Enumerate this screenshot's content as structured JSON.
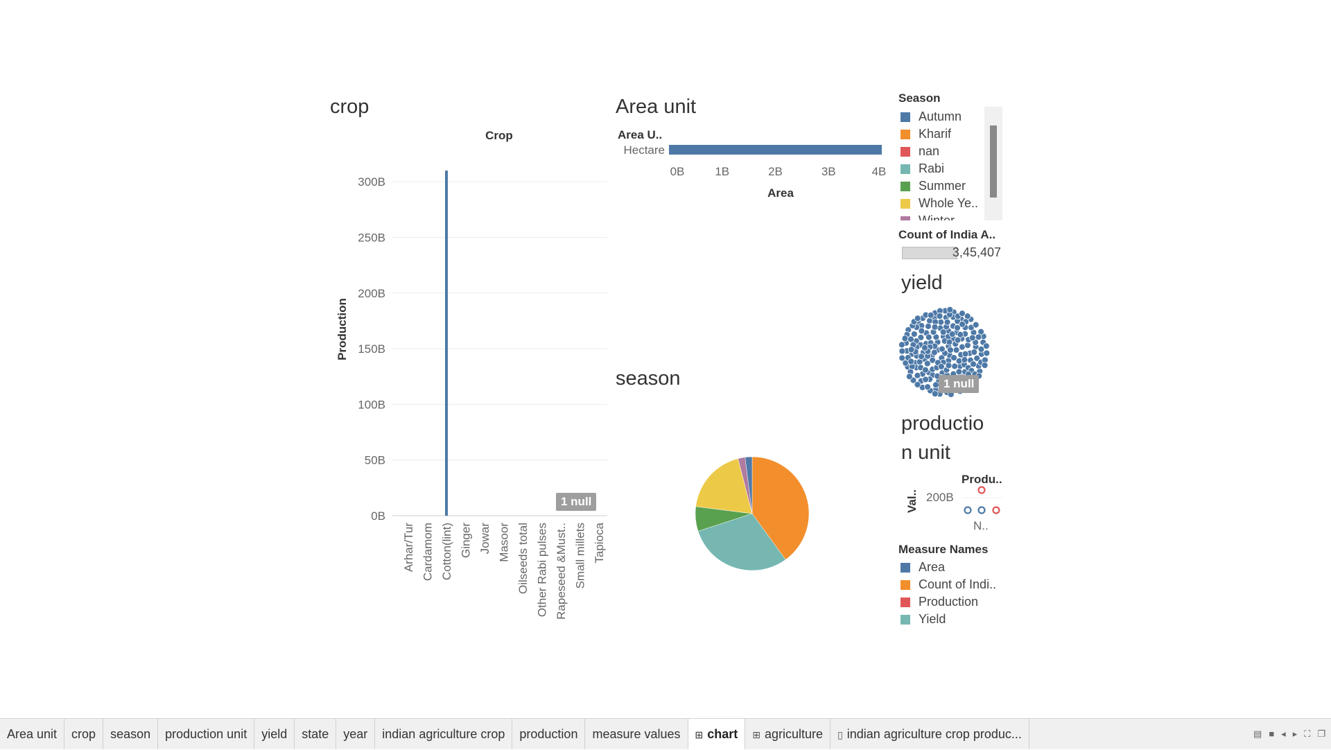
{
  "crop_sheet": {
    "title": "crop",
    "chart_title": "Crop",
    "y_axis_label": "Production",
    "null_badge": "1 null"
  },
  "area_sheet": {
    "title": "Area unit",
    "row_header": "Area U..",
    "x_axis_label": "Area"
  },
  "season_sheet": {
    "title": "season"
  },
  "yield_sheet": {
    "title": "yield",
    "null_badge": "1 null"
  },
  "production_unit_sheet": {
    "title_line1": "productio",
    "title_line2": "n unit",
    "column_header": "Produ..",
    "row_label": "Val..",
    "y_tick": "200B",
    "x_tick": "N.."
  },
  "legend_season": {
    "title": "Season",
    "items": [
      {
        "label": "Autumn",
        "color": "#4e79a7"
      },
      {
        "label": "Kharif",
        "color": "#f28e2b"
      },
      {
        "label": "nan",
        "color": "#e15759"
      },
      {
        "label": "Rabi",
        "color": "#76b7b2"
      },
      {
        "label": "Summer",
        "color": "#59a14f"
      },
      {
        "label": "Whole Ye..",
        "color": "#edc948"
      },
      {
        "label": "Winter",
        "color": "#b07aa1"
      }
    ]
  },
  "legend_count": {
    "title": "Count of India A..",
    "value": "3,45,407"
  },
  "legend_measures": {
    "title": "Measure Names",
    "items": [
      {
        "label": "Area",
        "color": "#4e79a7"
      },
      {
        "label": "Count of Indi..",
        "color": "#f28e2b"
      },
      {
        "label": "Production",
        "color": "#e15759"
      },
      {
        "label": "Yield",
        "color": "#76b7b2"
      }
    ]
  },
  "tabs": [
    {
      "label": "Area unit",
      "icon": "",
      "active": false
    },
    {
      "label": "crop",
      "icon": "",
      "active": false
    },
    {
      "label": "season",
      "icon": "",
      "active": false
    },
    {
      "label": "production unit",
      "icon": "",
      "active": false
    },
    {
      "label": "yield",
      "icon": "",
      "active": false
    },
    {
      "label": "state",
      "icon": "",
      "active": false
    },
    {
      "label": "year",
      "icon": "",
      "active": false
    },
    {
      "label": "indian agriculture crop",
      "icon": "",
      "active": false
    },
    {
      "label": "production",
      "icon": "",
      "active": false
    },
    {
      "label": "measure values",
      "icon": "",
      "active": false
    },
    {
      "label": "chart",
      "icon": "dashboard-icon",
      "active": true
    },
    {
      "label": "agriculture",
      "icon": "dashboard-icon",
      "active": false
    },
    {
      "label": "indian agriculture crop produc...",
      "icon": "story-icon",
      "active": false
    }
  ],
  "chart_data": [
    {
      "type": "bar",
      "title": "Crop",
      "xlabel": "",
      "ylabel": "Production",
      "ylim": [
        0,
        320000000000
      ],
      "y_ticks": [
        "0B",
        "50B",
        "100B",
        "150B",
        "200B",
        "250B",
        "300B"
      ],
      "y_tick_values": [
        0,
        50000000000,
        100000000000,
        150000000000,
        200000000000,
        250000000000,
        300000000000
      ],
      "categories": [
        "Arhar/Tur",
        "Cardamom",
        "Cotton(lint)",
        "Ginger",
        "Jowar",
        "Masoor",
        "Oilseeds total",
        "Other Rabi pulses",
        "Rapeseed &Must..",
        "Small millets",
        "Tapioca"
      ],
      "values": [
        0,
        0,
        310000000000,
        0,
        0,
        0,
        0,
        0,
        0,
        0,
        0
      ],
      "color": "#4e79a7"
    },
    {
      "type": "bar",
      "orientation": "horizontal",
      "title": "",
      "xlabel": "Area",
      "ylabel": "Area U..",
      "categories": [
        "Hectare"
      ],
      "values": [
        4000000000
      ],
      "xlim": [
        0,
        4000000000
      ],
      "x_ticks": [
        "0B",
        "1B",
        "2B",
        "3B",
        "4B"
      ],
      "x_tick_values": [
        0,
        1000000000,
        2000000000,
        3000000000,
        4000000000
      ],
      "color": "#4e79a7"
    },
    {
      "type": "pie",
      "title": "",
      "categories": [
        "Kharif",
        "Rabi",
        "Summer",
        "Whole Ye..",
        "Winter",
        "Autumn"
      ],
      "values": [
        40,
        30,
        7,
        19,
        2,
        2
      ],
      "colors": [
        "#f28e2b",
        "#76b7b2",
        "#59a14f",
        "#edc948",
        "#b07aa1",
        "#4e79a7"
      ]
    },
    {
      "type": "scatter",
      "title": "",
      "xlabel": "",
      "ylabel": "Val..",
      "categories": [
        "N.."
      ],
      "y_ticks": [
        "200B"
      ],
      "series": [
        {
          "name": "Count of Indi..",
          "color": "#4e79a7"
        },
        {
          "name": "Area",
          "color": "#4e79a7"
        },
        {
          "name": "Production",
          "color": "#e15759"
        },
        {
          "name": "Yield",
          "color": "#76b7b2"
        }
      ]
    }
  ]
}
